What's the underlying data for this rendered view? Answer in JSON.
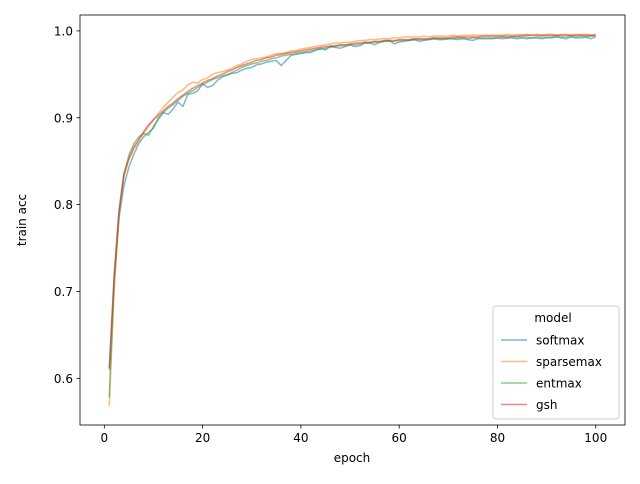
{
  "chart_data": {
    "type": "line",
    "title": "",
    "xlabel": "epoch",
    "ylabel": "train acc",
    "xlim": [
      -4.95,
      105.95
    ],
    "ylim": [
      0.5463,
      1.0183
    ],
    "xticks": [
      0,
      20,
      40,
      60,
      80,
      100
    ],
    "yticks": [
      0.6,
      0.7,
      0.8,
      0.9,
      1.0
    ],
    "ytick_labels": [
      "0.6",
      "0.7",
      "0.8",
      "0.9",
      "1.0"
    ],
    "grid": false,
    "legend": {
      "title": "model",
      "placement": "lower-right"
    },
    "x": [
      1,
      2,
      3,
      4,
      5,
      6,
      7,
      8,
      9,
      10,
      11,
      12,
      13,
      14,
      15,
      16,
      17,
      18,
      19,
      20,
      21,
      22,
      23,
      24,
      25,
      26,
      27,
      28,
      29,
      30,
      31,
      32,
      33,
      34,
      35,
      36,
      37,
      38,
      39,
      40,
      41,
      42,
      43,
      44,
      45,
      46,
      47,
      48,
      49,
      50,
      51,
      52,
      53,
      54,
      55,
      56,
      57,
      58,
      59,
      60,
      61,
      62,
      63,
      64,
      65,
      66,
      67,
      68,
      69,
      70,
      71,
      72,
      73,
      74,
      75,
      76,
      77,
      78,
      79,
      80,
      81,
      82,
      83,
      84,
      85,
      86,
      87,
      88,
      89,
      90,
      91,
      92,
      93,
      94,
      95,
      96,
      97,
      98,
      99,
      100
    ],
    "series": [
      {
        "name": "softmax",
        "color": "#1f77b4",
        "values": [
          0.61,
          0.712,
          0.785,
          0.822,
          0.843,
          0.858,
          0.87,
          0.878,
          0.883,
          0.888,
          0.9,
          0.906,
          0.904,
          0.91,
          0.918,
          0.913,
          0.927,
          0.928,
          0.931,
          0.939,
          0.935,
          0.937,
          0.943,
          0.947,
          0.949,
          0.951,
          0.952,
          0.955,
          0.957,
          0.958,
          0.961,
          0.962,
          0.964,
          0.965,
          0.966,
          0.96,
          0.966,
          0.972,
          0.973,
          0.974,
          0.975,
          0.975,
          0.978,
          0.98,
          0.978,
          0.983,
          0.981,
          0.98,
          0.982,
          0.984,
          0.982,
          0.983,
          0.986,
          0.986,
          0.984,
          0.987,
          0.988,
          0.989,
          0.985,
          0.987,
          0.988,
          0.989,
          0.99,
          0.988,
          0.989,
          0.99,
          0.991,
          0.99,
          0.99,
          0.991,
          0.991,
          0.99,
          0.991,
          0.99,
          0.989,
          0.991,
          0.991,
          0.991,
          0.991,
          0.992,
          0.991,
          0.992,
          0.992,
          0.991,
          0.992,
          0.991,
          0.992,
          0.992,
          0.991,
          0.992,
          0.992,
          0.993,
          0.992,
          0.991,
          0.993,
          0.992,
          0.992,
          0.993,
          0.991,
          0.993
        ]
      },
      {
        "name": "sparsemax",
        "color": "#ff7f0e",
        "values": [
          0.568,
          0.7,
          0.789,
          0.832,
          0.852,
          0.864,
          0.873,
          0.882,
          0.89,
          0.897,
          0.905,
          0.912,
          0.918,
          0.924,
          0.929,
          0.932,
          0.938,
          0.941,
          0.94,
          0.944,
          0.946,
          0.95,
          0.952,
          0.953,
          0.955,
          0.957,
          0.96,
          0.962,
          0.965,
          0.967,
          0.968,
          0.969,
          0.97,
          0.972,
          0.974,
          0.974,
          0.975,
          0.977,
          0.977,
          0.979,
          0.98,
          0.981,
          0.982,
          0.983,
          0.984,
          0.985,
          0.986,
          0.986,
          0.987,
          0.987,
          0.988,
          0.989,
          0.989,
          0.99,
          0.99,
          0.991,
          0.991,
          0.991,
          0.992,
          0.992,
          0.993,
          0.993,
          0.993,
          0.993,
          0.994,
          0.993,
          0.994,
          0.994,
          0.994,
          0.994,
          0.995,
          0.994,
          0.995,
          0.995,
          0.995,
          0.995,
          0.995,
          0.995,
          0.995,
          0.995,
          0.995,
          0.996,
          0.995,
          0.996,
          0.995,
          0.996,
          0.995,
          0.996,
          0.995,
          0.996,
          0.996,
          0.995,
          0.996,
          0.996,
          0.995,
          0.996,
          0.996,
          0.996,
          0.995,
          0.996
        ]
      },
      {
        "name": "entmax",
        "color": "#2ca02c",
        "values": [
          0.578,
          0.712,
          0.79,
          0.835,
          0.857,
          0.87,
          0.878,
          0.882,
          0.88,
          0.89,
          0.898,
          0.906,
          0.911,
          0.915,
          0.92,
          0.925,
          0.928,
          0.931,
          0.935,
          0.938,
          0.941,
          0.944,
          0.946,
          0.948,
          0.95,
          0.952,
          0.955,
          0.958,
          0.96,
          0.962,
          0.963,
          0.965,
          0.966,
          0.968,
          0.969,
          0.971,
          0.972,
          0.973,
          0.974,
          0.975,
          0.976,
          0.977,
          0.978,
          0.979,
          0.98,
          0.981,
          0.982,
          0.983,
          0.983,
          0.984,
          0.984,
          0.985,
          0.986,
          0.986,
          0.987,
          0.987,
          0.988,
          0.988,
          0.988,
          0.989,
          0.989,
          0.989,
          0.99,
          0.99,
          0.99,
          0.99,
          0.991,
          0.991,
          0.991,
          0.991,
          0.991,
          0.992,
          0.992,
          0.991,
          0.992,
          0.992,
          0.992,
          0.992,
          0.992,
          0.992,
          0.993,
          0.992,
          0.993,
          0.993,
          0.993,
          0.993,
          0.992,
          0.993,
          0.993,
          0.993,
          0.993,
          0.994,
          0.993,
          0.993,
          0.994,
          0.993,
          0.994,
          0.993,
          0.994,
          0.994
        ]
      },
      {
        "name": "gsh",
        "color": "#d62728",
        "values": [
          0.612,
          0.72,
          0.795,
          0.836,
          0.853,
          0.866,
          0.875,
          0.884,
          0.892,
          0.898,
          0.903,
          0.908,
          0.913,
          0.917,
          0.922,
          0.926,
          0.93,
          0.934,
          0.937,
          0.94,
          0.943,
          0.945,
          0.948,
          0.95,
          0.953,
          0.955,
          0.958,
          0.96,
          0.962,
          0.964,
          0.966,
          0.967,
          0.969,
          0.97,
          0.972,
          0.973,
          0.974,
          0.975,
          0.976,
          0.977,
          0.978,
          0.979,
          0.98,
          0.981,
          0.982,
          0.982,
          0.983,
          0.984,
          0.984,
          0.985,
          0.986,
          0.986,
          0.987,
          0.987,
          0.988,
          0.988,
          0.989,
          0.989,
          0.989,
          0.99,
          0.99,
          0.99,
          0.991,
          0.991,
          0.991,
          0.991,
          0.992,
          0.992,
          0.992,
          0.992,
          0.993,
          0.993,
          0.993,
          0.993,
          0.993,
          0.993,
          0.994,
          0.994,
          0.994,
          0.994,
          0.994,
          0.994,
          0.994,
          0.994,
          0.995,
          0.995,
          0.995,
          0.995,
          0.995,
          0.995,
          0.995,
          0.995,
          0.995,
          0.995,
          0.995,
          0.995,
          0.995,
          0.995,
          0.995,
          0.995
        ]
      }
    ]
  }
}
